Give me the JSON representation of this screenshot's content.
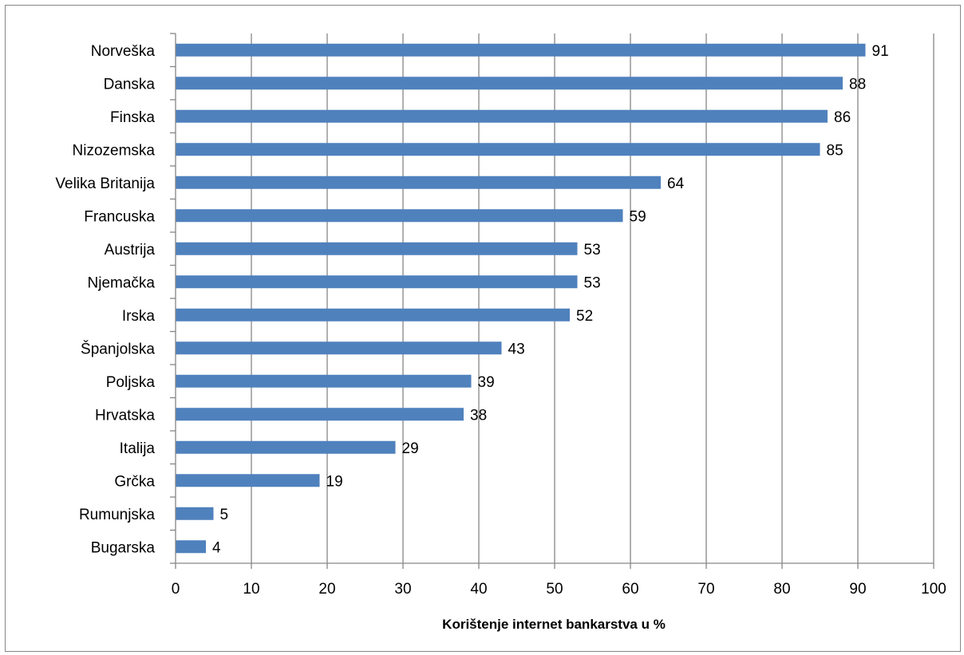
{
  "chart_data": {
    "type": "bar",
    "orientation": "horizontal",
    "categories": [
      "Norveška",
      "Danska",
      "Finska",
      "Nizozemska",
      "Velika Britanija",
      "Francuska",
      "Austrija",
      "Njemačka",
      "Irska",
      "Španjolska",
      "Poljska",
      "Hrvatska",
      "Italija",
      "Grčka",
      "Rumunjska",
      "Bugarska"
    ],
    "values": [
      91,
      88,
      86,
      85,
      64,
      59,
      53,
      53,
      52,
      43,
      39,
      38,
      29,
      19,
      5,
      4
    ],
    "data_labels": [
      "91",
      "88",
      "86",
      "85",
      "64",
      "59",
      "53",
      "53",
      "52",
      "43",
      "39",
      "38",
      "29",
      "19",
      "5",
      "4"
    ],
    "xlabel": "Korištenje internet bankarstva u %",
    "ylabel": "",
    "xlim": [
      0,
      100
    ],
    "x_ticks": [
      "0",
      "10",
      "20",
      "30",
      "40",
      "50",
      "60",
      "70",
      "80",
      "90",
      "100"
    ],
    "grid": "vertical",
    "legend": "none",
    "colors": {
      "bar": "#4F81BD",
      "grid": "#868686",
      "axis": "#868686",
      "border": "#868686"
    }
  }
}
